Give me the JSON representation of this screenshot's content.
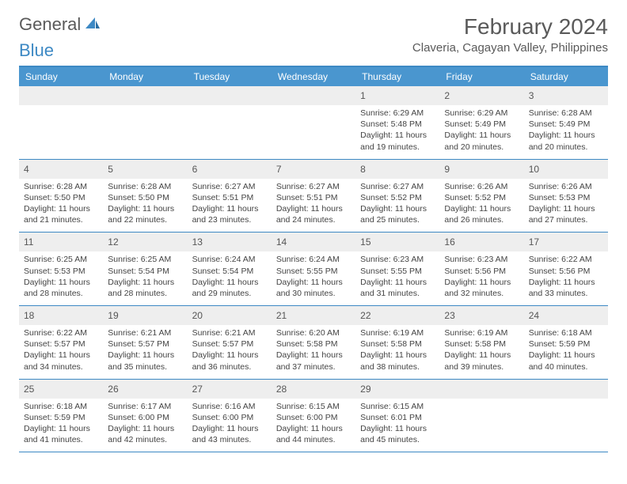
{
  "logo": {
    "text1": "General",
    "text2": "Blue"
  },
  "header": {
    "month_title": "February 2024",
    "location": "Claveria, Cagayan Valley, Philippines"
  },
  "colors": {
    "accent": "#3d89c4",
    "header_bg": "#4a96cf",
    "daynum_bg": "#eeeeee",
    "page_bg": "#ffffff",
    "text": "#3a3a3a"
  },
  "weekdays": [
    "Sunday",
    "Monday",
    "Tuesday",
    "Wednesday",
    "Thursday",
    "Friday",
    "Saturday"
  ],
  "weeks": [
    [
      null,
      null,
      null,
      null,
      {
        "n": "1",
        "sunrise": "6:29 AM",
        "sunset": "5:48 PM",
        "daylight": "11 hours and 19 minutes."
      },
      {
        "n": "2",
        "sunrise": "6:29 AM",
        "sunset": "5:49 PM",
        "daylight": "11 hours and 20 minutes."
      },
      {
        "n": "3",
        "sunrise": "6:28 AM",
        "sunset": "5:49 PM",
        "daylight": "11 hours and 20 minutes."
      }
    ],
    [
      {
        "n": "4",
        "sunrise": "6:28 AM",
        "sunset": "5:50 PM",
        "daylight": "11 hours and 21 minutes."
      },
      {
        "n": "5",
        "sunrise": "6:28 AM",
        "sunset": "5:50 PM",
        "daylight": "11 hours and 22 minutes."
      },
      {
        "n": "6",
        "sunrise": "6:27 AM",
        "sunset": "5:51 PM",
        "daylight": "11 hours and 23 minutes."
      },
      {
        "n": "7",
        "sunrise": "6:27 AM",
        "sunset": "5:51 PM",
        "daylight": "11 hours and 24 minutes."
      },
      {
        "n": "8",
        "sunrise": "6:27 AM",
        "sunset": "5:52 PM",
        "daylight": "11 hours and 25 minutes."
      },
      {
        "n": "9",
        "sunrise": "6:26 AM",
        "sunset": "5:52 PM",
        "daylight": "11 hours and 26 minutes."
      },
      {
        "n": "10",
        "sunrise": "6:26 AM",
        "sunset": "5:53 PM",
        "daylight": "11 hours and 27 minutes."
      }
    ],
    [
      {
        "n": "11",
        "sunrise": "6:25 AM",
        "sunset": "5:53 PM",
        "daylight": "11 hours and 28 minutes."
      },
      {
        "n": "12",
        "sunrise": "6:25 AM",
        "sunset": "5:54 PM",
        "daylight": "11 hours and 28 minutes."
      },
      {
        "n": "13",
        "sunrise": "6:24 AM",
        "sunset": "5:54 PM",
        "daylight": "11 hours and 29 minutes."
      },
      {
        "n": "14",
        "sunrise": "6:24 AM",
        "sunset": "5:55 PM",
        "daylight": "11 hours and 30 minutes."
      },
      {
        "n": "15",
        "sunrise": "6:23 AM",
        "sunset": "5:55 PM",
        "daylight": "11 hours and 31 minutes."
      },
      {
        "n": "16",
        "sunrise": "6:23 AM",
        "sunset": "5:56 PM",
        "daylight": "11 hours and 32 minutes."
      },
      {
        "n": "17",
        "sunrise": "6:22 AM",
        "sunset": "5:56 PM",
        "daylight": "11 hours and 33 minutes."
      }
    ],
    [
      {
        "n": "18",
        "sunrise": "6:22 AM",
        "sunset": "5:57 PM",
        "daylight": "11 hours and 34 minutes."
      },
      {
        "n": "19",
        "sunrise": "6:21 AM",
        "sunset": "5:57 PM",
        "daylight": "11 hours and 35 minutes."
      },
      {
        "n": "20",
        "sunrise": "6:21 AM",
        "sunset": "5:57 PM",
        "daylight": "11 hours and 36 minutes."
      },
      {
        "n": "21",
        "sunrise": "6:20 AM",
        "sunset": "5:58 PM",
        "daylight": "11 hours and 37 minutes."
      },
      {
        "n": "22",
        "sunrise": "6:19 AM",
        "sunset": "5:58 PM",
        "daylight": "11 hours and 38 minutes."
      },
      {
        "n": "23",
        "sunrise": "6:19 AM",
        "sunset": "5:58 PM",
        "daylight": "11 hours and 39 minutes."
      },
      {
        "n": "24",
        "sunrise": "6:18 AM",
        "sunset": "5:59 PM",
        "daylight": "11 hours and 40 minutes."
      }
    ],
    [
      {
        "n": "25",
        "sunrise": "6:18 AM",
        "sunset": "5:59 PM",
        "daylight": "11 hours and 41 minutes."
      },
      {
        "n": "26",
        "sunrise": "6:17 AM",
        "sunset": "6:00 PM",
        "daylight": "11 hours and 42 minutes."
      },
      {
        "n": "27",
        "sunrise": "6:16 AM",
        "sunset": "6:00 PM",
        "daylight": "11 hours and 43 minutes."
      },
      {
        "n": "28",
        "sunrise": "6:15 AM",
        "sunset": "6:00 PM",
        "daylight": "11 hours and 44 minutes."
      },
      {
        "n": "29",
        "sunrise": "6:15 AM",
        "sunset": "6:01 PM",
        "daylight": "11 hours and 45 minutes."
      },
      null,
      null
    ]
  ],
  "labels": {
    "sunrise_prefix": "Sunrise: ",
    "sunset_prefix": "Sunset: ",
    "daylight_prefix": "Daylight: "
  }
}
